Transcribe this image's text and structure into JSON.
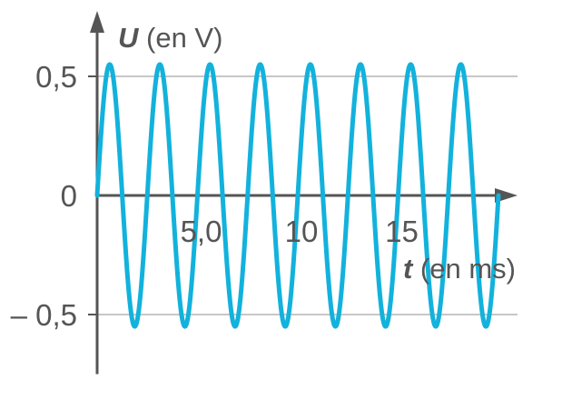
{
  "chart_data": {
    "type": "line",
    "title": "",
    "xlabel": {
      "symbol": "t",
      "unit": "(en ms)"
    },
    "ylabel": {
      "symbol": "U",
      "unit": "(en V)"
    },
    "x_ticks": [
      "5,0",
      "10",
      "15"
    ],
    "x_tick_values": [
      5,
      10,
      15
    ],
    "y_ticks": [
      "0,5",
      "0",
      "– 0,5"
    ],
    "y_tick_values": [
      0.5,
      0,
      -0.5
    ],
    "xlim": [
      0,
      20.2
    ],
    "ylim": [
      -0.75,
      0.72
    ],
    "grid": "horizontal at y ticks",
    "series": [
      {
        "function": "sine",
        "amplitude": 0.55,
        "period_ms": 2.5,
        "phase": 0,
        "x_start": 0,
        "x_end": 20
      }
    ],
    "colors": {
      "curve": "#12b2dc",
      "grid": "#c7c7c7",
      "axis": "#555555",
      "text": "#555555"
    }
  }
}
